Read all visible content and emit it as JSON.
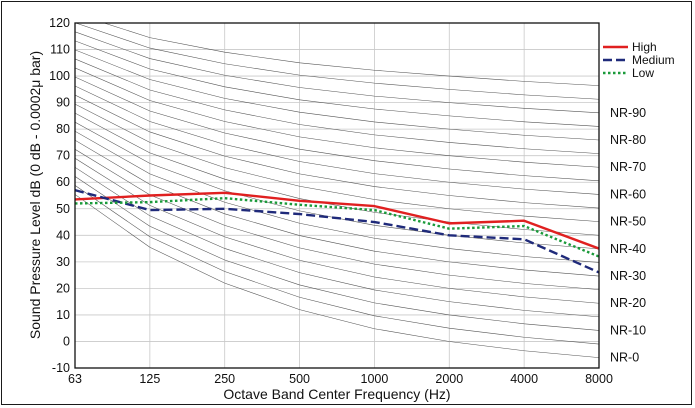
{
  "chart_data": {
    "type": "line",
    "xlabel": "Octave Band Center Frequency (Hz)",
    "ylabel": "Sound Pressure Level dB (0 dB - 0.0002μ bar)",
    "x": [
      "63",
      "125",
      "250",
      "500",
      "1000",
      "2000",
      "4000",
      "8000"
    ],
    "ylim": [
      -10,
      120
    ],
    "yticks": [
      "-10",
      "0",
      "10",
      "20",
      "30",
      "40",
      "50",
      "60",
      "70",
      "80",
      "90",
      "100",
      "110",
      "120"
    ],
    "grid": true,
    "legend_position": "top-right",
    "series": [
      {
        "name": "High",
        "color": "#e02020",
        "style": "solid",
        "values": [
          53.5,
          55,
          56,
          53,
          51,
          44.5,
          45.5,
          35
        ]
      },
      {
        "name": "Medium",
        "color": "#1f2a7a",
        "style": "dashed",
        "values": [
          57,
          49.5,
          50,
          48,
          45,
          40,
          38.5,
          26
        ]
      },
      {
        "name": "Low",
        "color": "#1a9a3a",
        "style": "dotted",
        "values": [
          52,
          52.5,
          54,
          51.5,
          49.5,
          42.5,
          43.5,
          32
        ]
      }
    ],
    "nr_curves": {
      "labels": [
        "NR-0",
        "NR-10",
        "NR-20",
        "NR-30",
        "NR-40",
        "NR-50",
        "NR-60",
        "NR-70",
        "NR-80",
        "NR-90"
      ],
      "color": "#555555",
      "rating_start": 0,
      "rating_end": 100,
      "rating_step": 5,
      "a": [
        55.4,
        35.5,
        22.0,
        12.0,
        4.8,
        0,
        -3.5,
        -6.1
      ],
      "b": [
        0.681,
        0.79,
        0.87,
        0.93,
        0.974,
        1.0,
        1.015,
        1.025
      ]
    }
  }
}
